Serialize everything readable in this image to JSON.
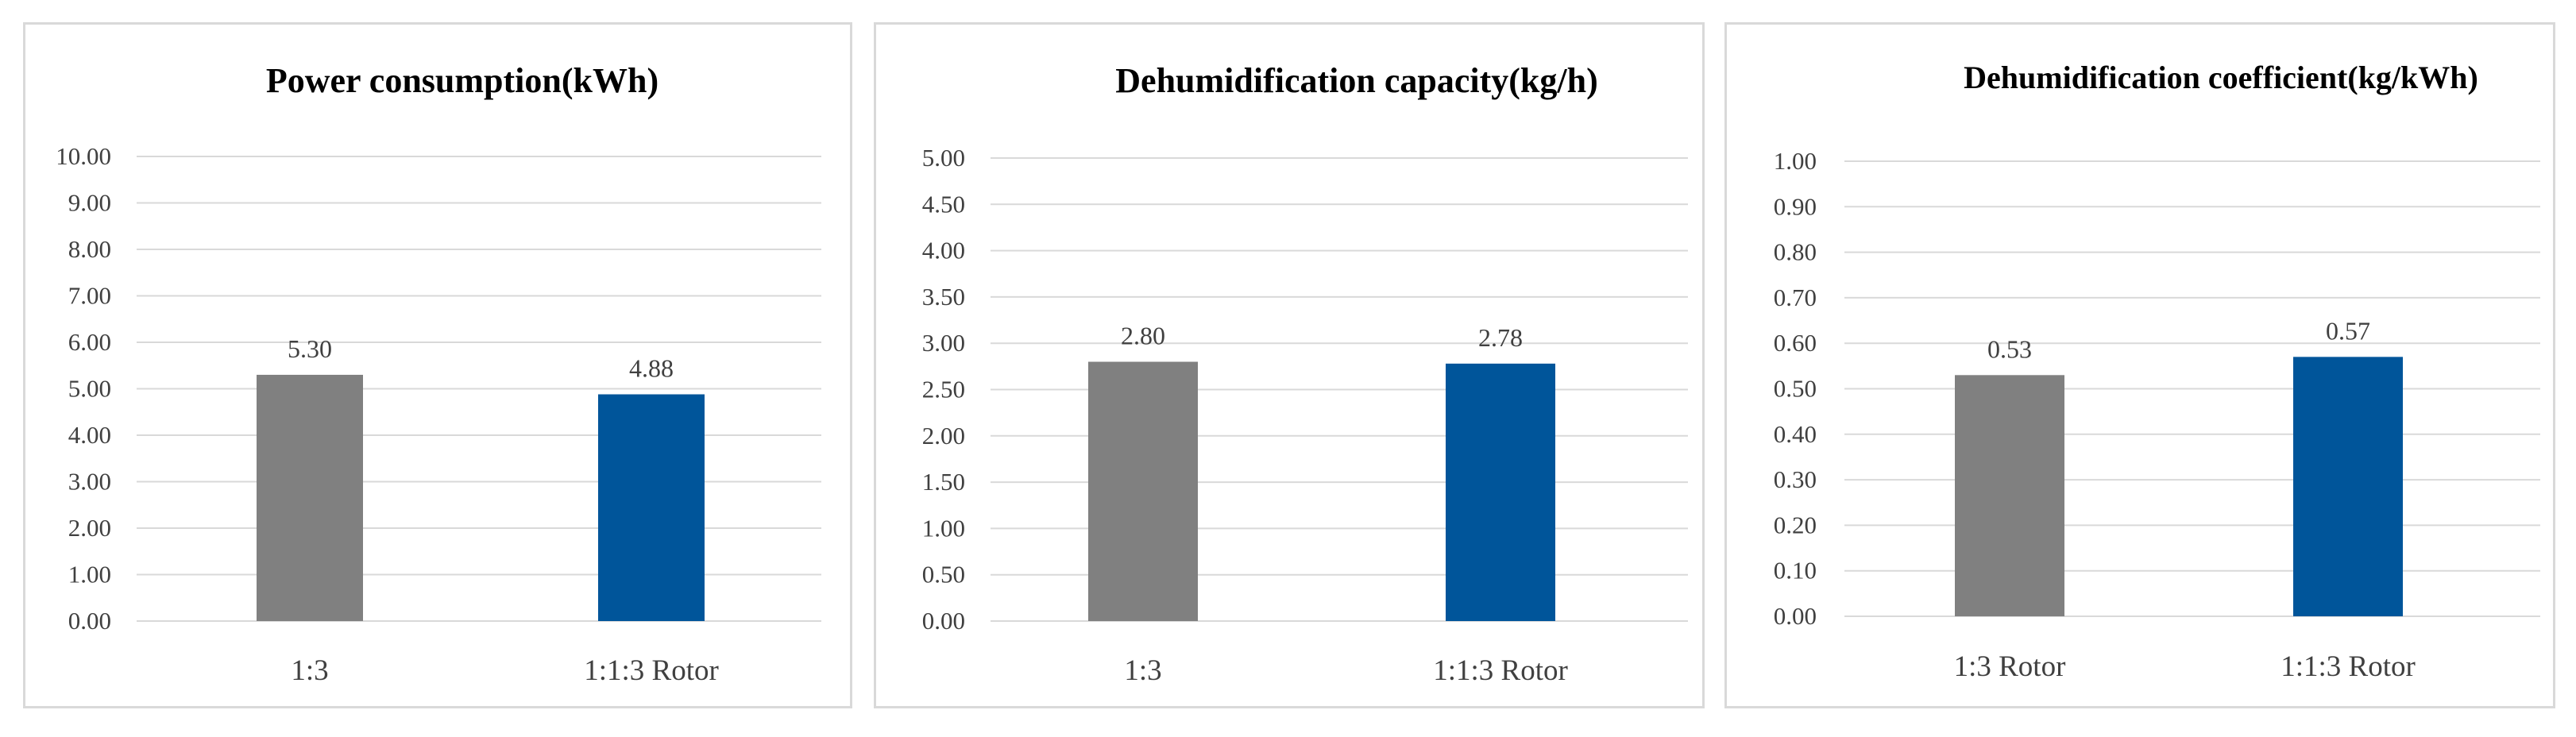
{
  "chart_data": [
    {
      "type": "bar",
      "title": "Power consumption(kWh)",
      "categories": [
        "1:3",
        "1:1:3 Rotor"
      ],
      "values": [
        5.3,
        4.88
      ],
      "data_labels": [
        "5.30",
        "4.88"
      ],
      "colors": [
        "#808080",
        "#00559a"
      ],
      "ylim": [
        0,
        10
      ],
      "ytick_step": 1,
      "ytick_labels": [
        "0.00",
        "1.00",
        "2.00",
        "3.00",
        "4.00",
        "5.00",
        "6.00",
        "7.00",
        "8.00",
        "9.00",
        "10.00"
      ],
      "grid": true,
      "legend": "none"
    },
    {
      "type": "bar",
      "title": "Dehumidification capacity(kg/h)",
      "categories": [
        "1:3",
        "1:1:3 Rotor"
      ],
      "values": [
        2.8,
        2.78
      ],
      "data_labels": [
        "2.80",
        "2.78"
      ],
      "colors": [
        "#808080",
        "#00559a"
      ],
      "ylim": [
        0,
        5
      ],
      "ytick_step": 0.5,
      "ytick_labels": [
        "0.00",
        "0.50",
        "1.00",
        "1.50",
        "2.00",
        "2.50",
        "3.00",
        "3.50",
        "4.00",
        "4.50",
        "5.00"
      ],
      "grid": true,
      "legend": "none"
    },
    {
      "type": "bar",
      "title": "Dehumidification coefficient(kg/kWh)",
      "categories": [
        "1:3 Rotor",
        "1:1:3 Rotor"
      ],
      "values": [
        0.53,
        0.57
      ],
      "data_labels": [
        "0.53",
        "0.57"
      ],
      "colors": [
        "#808080",
        "#00559a"
      ],
      "ylim": [
        0,
        1
      ],
      "ytick_step": 0.1,
      "ytick_labels": [
        "0.00",
        "0.10",
        "0.20",
        "0.30",
        "0.40",
        "0.50",
        "0.60",
        "0.70",
        "0.80",
        "0.90",
        "1.00"
      ],
      "grid": true,
      "legend": "none"
    }
  ]
}
